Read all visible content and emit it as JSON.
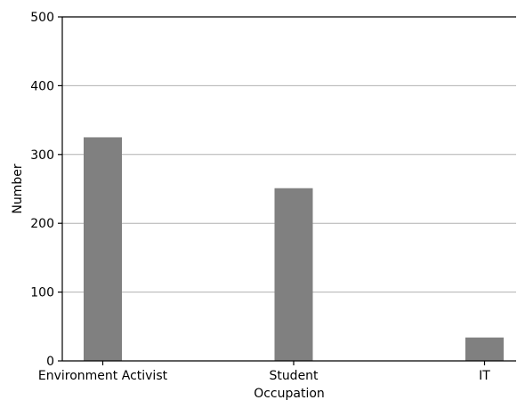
{
  "chart_data": {
    "type": "bar",
    "categories": [
      "Environment Activist",
      "Student",
      "IT"
    ],
    "values": [
      325,
      251,
      34
    ],
    "xlabel": "Occupation",
    "ylabel": "Number",
    "ylim": [
      0,
      500
    ],
    "yticks": [
      0,
      100,
      200,
      300,
      400,
      500
    ],
    "grid": "horizontal",
    "colors": {
      "bar": "#808080"
    }
  }
}
